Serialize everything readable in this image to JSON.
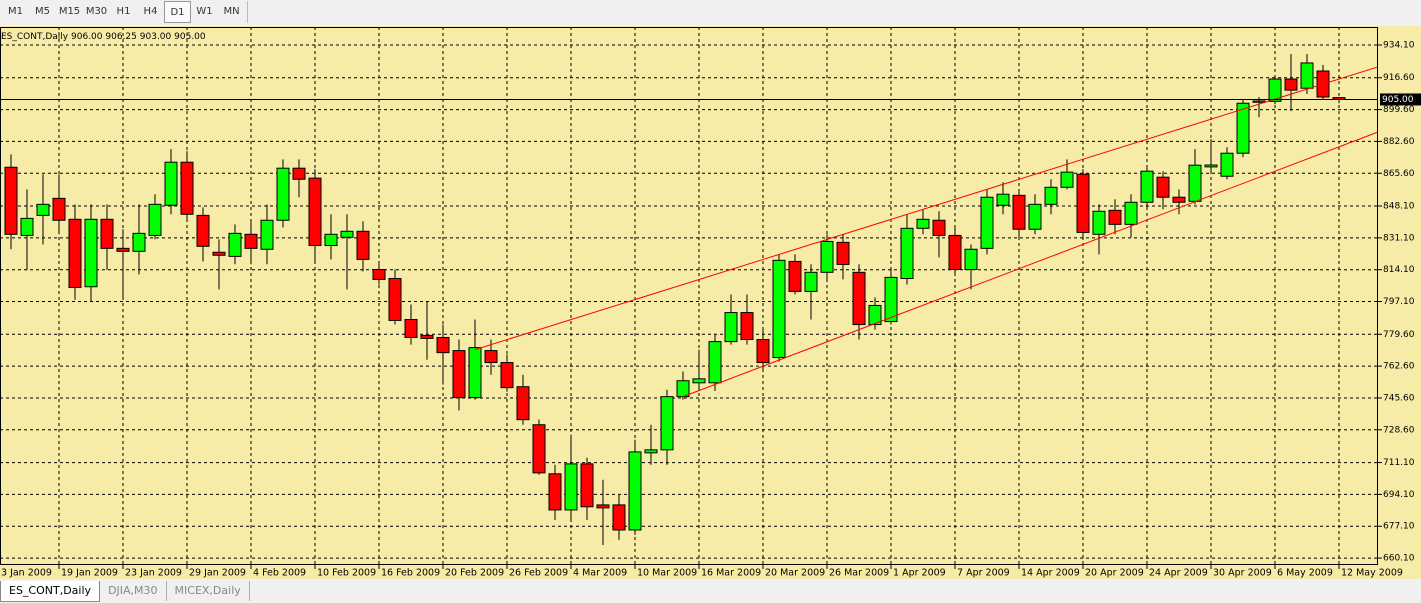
{
  "toolbar": {
    "timeframes": [
      "M1",
      "M5",
      "M15",
      "M30",
      "H1",
      "H4",
      "D1",
      "W1",
      "MN"
    ],
    "active_timeframe": 6
  },
  "chart_data": {
    "type": "candlestick",
    "header": {
      "label": "ES_CONT,Daily",
      "ohlc": [
        {
          "value": 906,
          "label": "906.00"
        },
        {
          "value": 906.25,
          "label": "906.25"
        },
        {
          "value": 903,
          "label": "903.00"
        },
        {
          "value": 905,
          "label": "905.00"
        }
      ]
    },
    "categories": [
      "3 Jan 2009",
      null,
      null,
      null,
      "19 Jan 2009",
      null,
      null,
      null,
      "23 Jan 2009",
      null,
      null,
      null,
      "29 Jan 2009",
      null,
      null,
      null,
      "4 Feb 2009",
      null,
      null,
      null,
      "10 Feb 2009",
      null,
      null,
      null,
      "16 Feb 2009",
      null,
      null,
      null,
      "20 Feb 2009",
      null,
      null,
      null,
      "26 Feb 2009",
      null,
      null,
      null,
      "4 Mar 2009",
      null,
      null,
      null,
      "10 Mar 2009",
      null,
      null,
      null,
      "16 Mar 2009",
      null,
      null,
      null,
      "20 Mar 2009",
      null,
      null,
      null,
      "26 Mar 2009",
      null,
      null,
      null,
      "1 Apr 2009",
      null,
      null,
      null,
      "7 Apr 2009",
      null,
      null,
      null,
      "14 Apr 2009",
      null,
      null,
      null,
      "20 Apr 2009",
      null,
      null,
      null,
      "24 Apr 2009",
      null,
      null,
      null,
      "30 Apr 2009",
      null,
      null,
      null,
      "6 May 2009",
      null,
      null,
      null,
      "12 May 2009"
    ],
    "open": [
      null,
      868.8,
      832.4,
      843.1,
      852.2,
      841,
      805,
      841,
      825.5,
      823.9,
      832.4,
      848.5,
      871.5,
      843.1,
      823.4,
      821.2,
      833,
      825,
      840.5,
      868.3,
      863,
      827,
      831.4,
      834.6,
      814.2,
      809.4,
      787.5,
      779,
      777.9,
      770.9,
      745.8,
      770.9,
      764.5,
      751.6,
      731.3,
      705.1,
      685.8,
      710.4,
      688.5,
      688.5,
      675.1,
      716.3,
      717.9,
      746.3,
      753.7,
      753.7,
      775.7,
      791.2,
      776.8,
      767.2,
      818.5,
      802.5,
      812.7,
      828.7,
      812.7,
      784.8,
      786.4,
      809.4,
      836.2,
      840.5,
      832.4,
      814.2,
      825.5,
      848.5,
      853.8,
      835.7,
      849,
      858.1,
      865.1,
      833,
      845.8,
      838.3,
      850.1,
      863.5,
      852.8,
      850.6,
      869,
      864,
      876.3,
      903.5,
      904,
      915.9,
      911,
      920.2,
      906
    ],
    "high": [
      null,
      875.7,
      857,
      865,
      865,
      849,
      849,
      849,
      835.7,
      849,
      854.4,
      878.5,
      877.4,
      847.4,
      830.3,
      838.3,
      840,
      849,
      873,
      873,
      867.8,
      843.7,
      843.7,
      840,
      818.5,
      814.2,
      795.5,
      797,
      784.8,
      776.8,
      787.5,
      776.8,
      768.8,
      758,
      734,
      709.9,
      726,
      713.7,
      701.9,
      693.8,
      723.3,
      731.3,
      750,
      759.7,
      771.4,
      779.5,
      800.9,
      800.9,
      782.1,
      822.3,
      822.3,
      817,
      833,
      833,
      817,
      799.3,
      814.2,
      843.7,
      846.4,
      845.3,
      836.7,
      827.6,
      857,
      860.8,
      857,
      854.4,
      862.4,
      873,
      867.8,
      849,
      851.7,
      854.4,
      868.8,
      866.7,
      857,
      878.5,
      883.8,
      879.5,
      905.2,
      906.3,
      917.5,
      929.3,
      929.3,
      923.4,
      906.25
    ],
    "low": [
      null,
      825,
      814,
      827.6,
      833,
      798,
      797,
      814,
      798,
      811.6,
      830.3,
      843.7,
      840,
      818.5,
      803.6,
      817,
      817,
      817,
      836.7,
      852.8,
      818.5,
      819.6,
      803.6,
      813.2,
      806.2,
      784.8,
      774.1,
      766,
      752.7,
      739,
      744.7,
      758,
      749,
      731.3,
      704.6,
      680.5,
      680.5,
      680.5,
      667.1,
      669.8,
      672.5,
      709.9,
      709.9,
      744.7,
      749.4,
      749.4,
      774.1,
      774.1,
      760.8,
      765,
      800.9,
      787.5,
      808.9,
      808.9,
      776.8,
      782.1,
      784.8,
      806.2,
      833,
      820.7,
      811.6,
      803.6,
      822.3,
      843.7,
      830.3,
      833,
      843.7,
      857,
      830.3,
      822.3,
      833,
      831.4,
      846.4,
      846.4,
      843.7,
      849,
      865.1,
      862.4,
      874.2,
      895.6,
      902.5,
      898.8,
      907.9,
      905.2,
      903
    ],
    "close": [
      null,
      833,
      841.5,
      849,
      840.5,
      804.6,
      841,
      825.5,
      823.9,
      833.5,
      849,
      871.5,
      843.7,
      826.6,
      821.8,
      833.5,
      825.5,
      840.5,
      868.3,
      862.4,
      827,
      833,
      834.6,
      819.6,
      808.9,
      787,
      777.9,
      777.4,
      769.8,
      745.8,
      772.5,
      764.5,
      751.1,
      734,
      705.6,
      685.8,
      710.4,
      687.5,
      686.9,
      675.1,
      716.8,
      717.9,
      746.3,
      754.8,
      755.8,
      775.7,
      791.2,
      776.8,
      764.5,
      819.1,
      802.5,
      812.7,
      829.2,
      816.9,
      784.8,
      795,
      810,
      836.2,
      841,
      832.4,
      814.2,
      825,
      852.8,
      854.4,
      835.7,
      849,
      858.1,
      866.2,
      834,
      845.3,
      838.3,
      850.1,
      866.7,
      852.8,
      850.1,
      869.9,
      870,
      876.3,
      903,
      904.2,
      915.9,
      910,
      924.5,
      906.3,
      905
    ],
    "up_color": "#00ff00",
    "down_color": "#ff0000",
    "ylim": [
      656.4,
      943.7
    ],
    "yticks": [
      {
        "value": 934.1,
        "label": "934.10"
      },
      {
        "value": 916.6,
        "label": "916.60"
      },
      {
        "value": 899.6,
        "label": "899.60"
      },
      {
        "value": 882.6,
        "label": "882.60"
      },
      {
        "value": 865.6,
        "label": "865.60"
      },
      {
        "value": 848.1,
        "label": "848.10"
      },
      {
        "value": 831.1,
        "label": "831.10"
      },
      {
        "value": 814.1,
        "label": "814.10"
      },
      {
        "value": 797.1,
        "label": "797.10"
      },
      {
        "value": 779.6,
        "label": "779.60"
      },
      {
        "value": 762.6,
        "label": "762.60"
      },
      {
        "value": 745.6,
        "label": "745.60"
      },
      {
        "value": 728.6,
        "label": "728.60"
      },
      {
        "value": 711.1,
        "label": "711.10"
      },
      {
        "value": 694.1,
        "label": "694.10"
      },
      {
        "value": 677.1,
        "label": "677.10"
      },
      {
        "value": 660.1,
        "label": "660.10"
      }
    ],
    "current_price": {
      "value": 905,
      "label": "905.00"
    },
    "trendlines": [
      {
        "x": [
          30,
          86.4
        ],
        "y": [
          771.4,
          922.3
        ],
        "color": "#ff0000"
      },
      {
        "x": [
          43,
          86.4
        ],
        "y": [
          746.3,
          887.5
        ],
        "color": "#ff0000"
      }
    ],
    "grid": true
  },
  "tabs": [
    "ES_CONT,Daily",
    "DJIA,M30",
    "MICEX,Daily"
  ],
  "active_tab": 0
}
